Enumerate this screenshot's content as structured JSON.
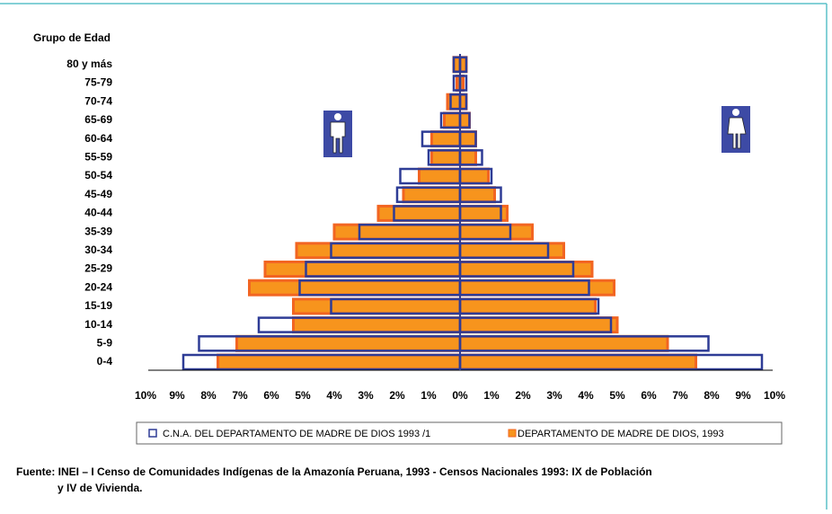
{
  "chart_data": {
    "type": "pyramid",
    "y_label": "Grupo de Edad",
    "categories": [
      "0-4",
      "5-9",
      "10-14",
      "15-19",
      "20-24",
      "25-29",
      "30-34",
      "35-39",
      "40-44",
      "45-49",
      "50-54",
      "55-59",
      "60-64",
      "65-69",
      "70-74",
      "75-79",
      "80 y más"
    ],
    "series": [
      {
        "name": "DEPARTAMENTO DE MADRE DE DIOS, 1993",
        "color": "#f7941d",
        "male": [
          7.7,
          7.1,
          5.3,
          5.3,
          6.7,
          6.2,
          5.2,
          4.0,
          2.6,
          1.8,
          1.3,
          0.9,
          0.9,
          0.5,
          0.4,
          0.1,
          0.2
        ],
        "female": [
          7.5,
          6.6,
          5.0,
          4.3,
          4.9,
          4.2,
          3.3,
          2.3,
          1.5,
          1.1,
          0.9,
          0.5,
          0.5,
          0.3,
          0.2,
          0.1,
          0.2
        ]
      },
      {
        "name": "C.N.A. DEL DEPARTAMENTO DE MADRE DE DIOS 1993 /1",
        "color": "#2e3c96",
        "male": [
          8.8,
          8.3,
          6.4,
          4.1,
          5.1,
          4.9,
          4.1,
          3.2,
          2.1,
          2.0,
          1.9,
          1.0,
          1.2,
          0.6,
          0.3,
          0.2,
          0.2
        ],
        "female": [
          9.6,
          7.9,
          4.8,
          4.4,
          4.1,
          3.6,
          2.8,
          1.6,
          1.3,
          1.3,
          1.0,
          0.7,
          0.5,
          0.3,
          0.2,
          0.2,
          0.2
        ]
      }
    ],
    "xlim": [
      -10,
      10
    ],
    "xticks": [
      {
        "value": -10,
        "label": "10%"
      },
      {
        "value": -9,
        "label": "9%"
      },
      {
        "value": -8,
        "label": "8%"
      },
      {
        "value": -7,
        "label": "7%"
      },
      {
        "value": -6,
        "label": "6%"
      },
      {
        "value": -5,
        "label": "5%"
      },
      {
        "value": -4,
        "label": "4%"
      },
      {
        "value": -3,
        "label": "3%"
      },
      {
        "value": -2,
        "label": "2%"
      },
      {
        "value": -1,
        "label": "1%"
      },
      {
        "value": 0,
        "label": "0%"
      },
      {
        "value": 1,
        "label": "1%"
      },
      {
        "value": 2,
        "label": "2%"
      },
      {
        "value": 3,
        "label": "3%"
      },
      {
        "value": 4,
        "label": "4%"
      },
      {
        "value": 5,
        "label": "5%"
      },
      {
        "value": 6,
        "label": "6%"
      },
      {
        "value": 7,
        "label": "7%"
      },
      {
        "value": 8,
        "label": "8%"
      },
      {
        "value": 9,
        "label": "9%"
      },
      {
        "value": 10,
        "label": "10%"
      }
    ],
    "source_line1": "Fuente:  INEI – I Censo de Comunidades Indígenas de la Amazonía Peruana, 1993 - Censos Nacionales 1993: IX de Población",
    "source_line2": "y IV de Vivienda."
  }
}
